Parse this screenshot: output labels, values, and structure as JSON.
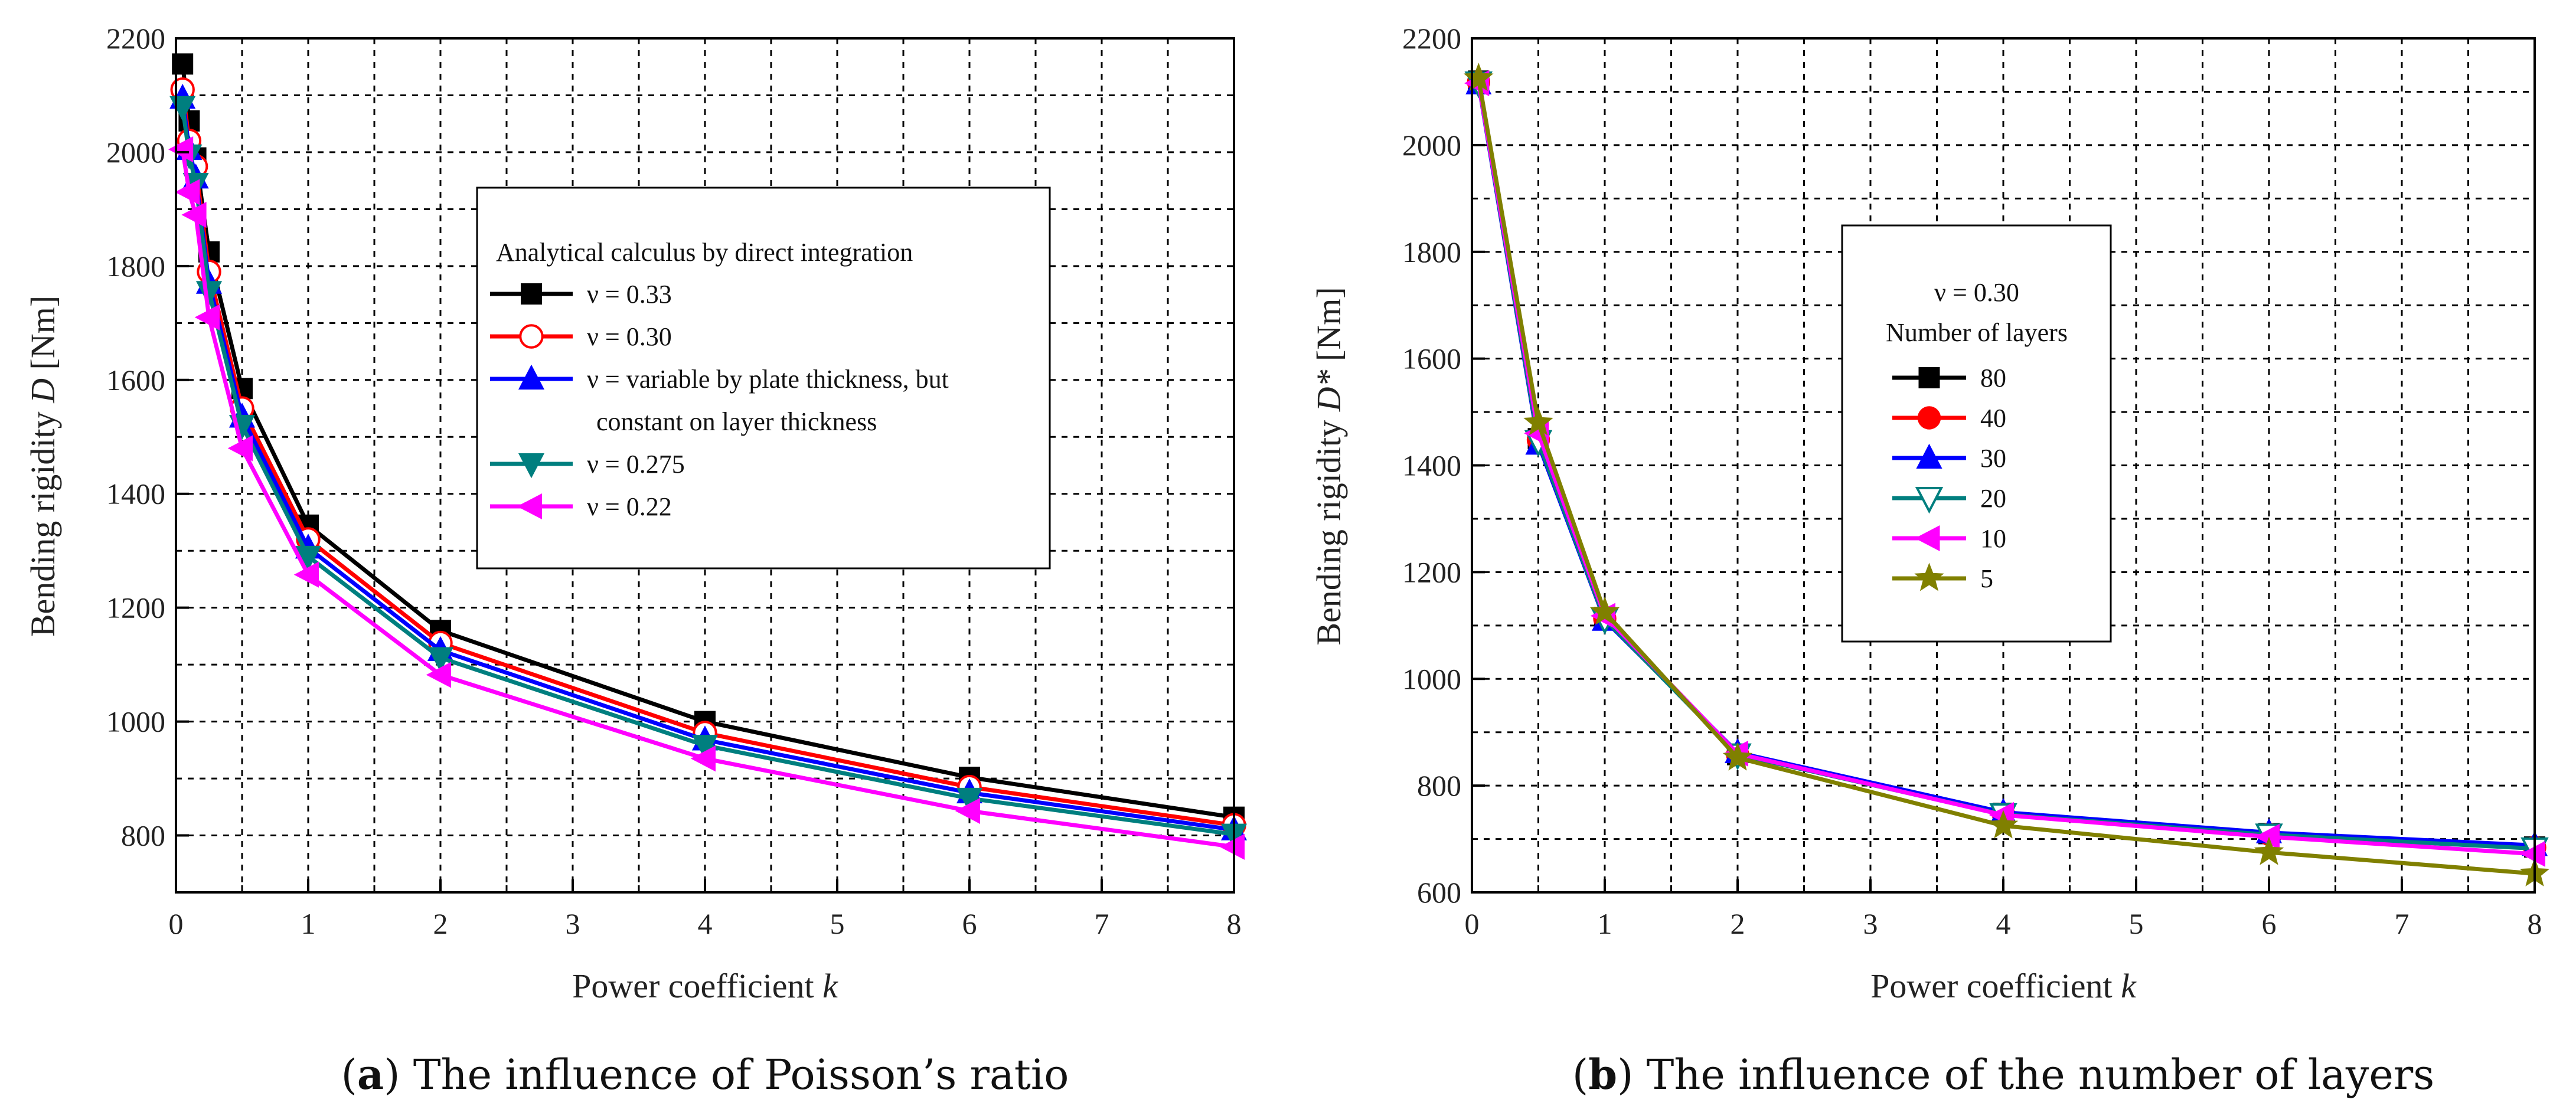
{
  "chart_data": [
    {
      "type": "line",
      "xlabel_text": "Power coefficient ",
      "xlabel_var": "k",
      "ylabel_text": "Bending rigidity ",
      "ylabel_var": "D",
      "ylabel_unit": " [Nm]",
      "xlim": [
        0,
        8
      ],
      "ylim": [
        700,
        2200
      ],
      "xticks": [
        0,
        1,
        2,
        3,
        4,
        5,
        6,
        7,
        8
      ],
      "yticks": [
        800,
        1000,
        1200,
        1400,
        1600,
        1800,
        2000,
        2200
      ],
      "grid": true,
      "legend_title": "Analytical calculus by direct integration",
      "legend_position": "top-right",
      "caption_letter": "a",
      "caption_text": " The influence of Poisson’s ratio",
      "series": [
        {
          "name": "ν = 0.33",
          "color": "#000000",
          "marker": "square",
          "x": [
            0.05,
            0.1,
            0.15,
            0.25,
            0.5,
            1,
            2,
            4,
            6,
            8
          ],
          "y": [
            2155,
            2055,
            1990,
            1825,
            1585,
            1345,
            1160,
            1000,
            902,
            832
          ]
        },
        {
          "name": "ν = 0.30",
          "color": "#ff0000",
          "marker": "circle-open",
          "x": [
            0.05,
            0.1,
            0.15,
            0.25,
            0.5,
            1,
            2,
            4,
            6,
            8
          ],
          "y": [
            2110,
            2020,
            1975,
            1790,
            1550,
            1320,
            1138,
            980,
            885,
            818
          ]
        },
        {
          "name": "ν = variable by plate thickness, but",
          "name_line2": "constant on layer thickness",
          "color": "#0000ff",
          "marker": "triangle-up",
          "x": [
            0.05,
            0.1,
            0.15,
            0.25,
            0.5,
            1,
            2,
            4,
            6,
            8
          ],
          "y": [
            2095,
            2005,
            1955,
            1770,
            1535,
            1305,
            1125,
            968,
            875,
            810
          ]
        },
        {
          "name": "ν = 0.275",
          "color": "#007f7f",
          "marker": "triangle-down",
          "x": [
            0.05,
            0.1,
            0.15,
            0.25,
            0.5,
            1,
            2,
            4,
            6,
            8
          ],
          "y": [
            2080,
            1995,
            1945,
            1755,
            1520,
            1290,
            1112,
            958,
            865,
            802
          ]
        },
        {
          "name": "ν = 0.22",
          "color": "#ff00ff",
          "marker": "triangle-left",
          "x": [
            0.05,
            0.1,
            0.15,
            0.25,
            0.5,
            1,
            2,
            4,
            6,
            8
          ],
          "y": [
            2005,
            1930,
            1890,
            1710,
            1480,
            1258,
            1082,
            935,
            843,
            780
          ]
        }
      ]
    },
    {
      "type": "line",
      "xlabel_text": "Power coefficient ",
      "xlabel_var": "k",
      "ylabel_text": "Bending rigidity ",
      "ylabel_var": "D*",
      "ylabel_unit": " [Nm]",
      "xlim": [
        0,
        8
      ],
      "ylim": [
        600,
        2200
      ],
      "xticks": [
        0,
        1,
        2,
        3,
        4,
        5,
        6,
        7,
        8
      ],
      "yticks": [
        600,
        800,
        1000,
        1200,
        1400,
        1600,
        1800,
        2000,
        2200
      ],
      "grid": true,
      "legend_nu": "ν = 0.30",
      "legend_title": "Number of layers",
      "legend_position": "top-center",
      "caption_letter": "b",
      "caption_text": " The influence of the number of layers",
      "series": [
        {
          "name": "80",
          "color": "#000000",
          "marker": "square",
          "x": [
            0.05,
            0.5,
            1,
            2,
            4,
            6,
            8
          ],
          "y": [
            2120,
            1450,
            1115,
            858,
            748,
            710,
            685
          ]
        },
        {
          "name": "40",
          "color": "#ff0000",
          "marker": "circle",
          "x": [
            0.05,
            0.5,
            1,
            2,
            4,
            6,
            8
          ],
          "y": [
            2118,
            1448,
            1113,
            858,
            747,
            709,
            684
          ]
        },
        {
          "name": "30",
          "color": "#0000ff",
          "marker": "triangle-up",
          "x": [
            0.05,
            0.5,
            1,
            2,
            4,
            6,
            8
          ],
          "y": [
            2115,
            1440,
            1110,
            862,
            750,
            712,
            688
          ]
        },
        {
          "name": "20",
          "color": "#007f7f",
          "marker": "triangle-down-open",
          "x": [
            0.05,
            0.5,
            1,
            2,
            4,
            6,
            8
          ],
          "y": [
            2117,
            1445,
            1112,
            858,
            746,
            708,
            682
          ]
        },
        {
          "name": "10",
          "color": "#ff00ff",
          "marker": "triangle-left",
          "x": [
            0.05,
            0.5,
            1,
            2,
            4,
            6,
            8
          ],
          "y": [
            2116,
            1460,
            1118,
            860,
            745,
            704,
            672
          ]
        },
        {
          "name": "5",
          "color": "#808000",
          "marker": "star",
          "x": [
            0.05,
            0.5,
            1,
            2,
            4,
            6,
            8
          ],
          "y": [
            2125,
            1480,
            1125,
            852,
            725,
            675,
            635
          ]
        }
      ]
    }
  ]
}
